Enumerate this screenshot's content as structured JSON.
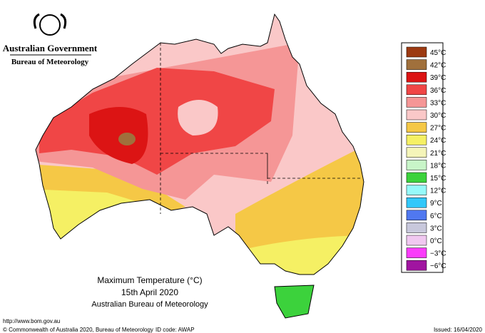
{
  "header": {
    "agency": "Australian Government",
    "bureau": "Bureau of Meteorology"
  },
  "legend": {
    "items": [
      {
        "label": "45°C",
        "color": "#9c3a12"
      },
      {
        "label": "42°C",
        "color": "#a0703c"
      },
      {
        "label": "39°C",
        "color": "#dc1414"
      },
      {
        "label": "36°C",
        "color": "#f04646"
      },
      {
        "label": "33°C",
        "color": "#f59696"
      },
      {
        "label": "30°C",
        "color": "#fac8c8"
      },
      {
        "label": "27°C",
        "color": "#f5c846"
      },
      {
        "label": "24°C",
        "color": "#f5f064"
      },
      {
        "label": "21°C",
        "color": "#f5f5b9"
      },
      {
        "label": "18°C",
        "color": "#c8f5c8"
      },
      {
        "label": "15°C",
        "color": "#3cd23c"
      },
      {
        "label": "12°C",
        "color": "#96fafa"
      },
      {
        "label": "9°C",
        "color": "#32c8fa"
      },
      {
        "label": "6°C",
        "color": "#5078f0"
      },
      {
        "label": "3°C",
        "color": "#c8c8dc"
      },
      {
        "label": "0°C",
        "color": "#f0c8f0"
      },
      {
        "label": "−3°C",
        "color": "#fa3cfa"
      },
      {
        "label": "−6°C",
        "color": "#a014a0"
      }
    ]
  },
  "title": {
    "line1": "Maximum Temperature (°C)",
    "line2": "15th April 2020",
    "line3": "Australian Bureau of Meteorology"
  },
  "footer": {
    "url": "http://www.bom.gov.au",
    "copyright": "© Commonwealth of Australia 2020, Bureau of Meteorology",
    "id_code": "ID code: AWAP",
    "issued": "Issued: 16/04/2020"
  }
}
